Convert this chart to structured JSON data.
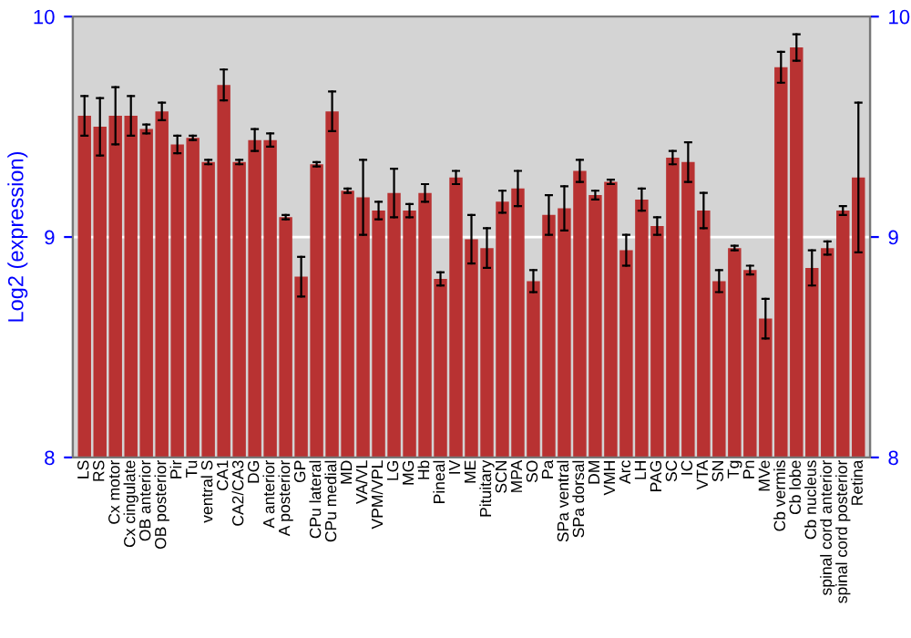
{
  "chart_data": {
    "type": "bar",
    "ylabel": "Log2 (expression)",
    "categories": [
      "LS",
      "RS",
      "Cx motor",
      "Cx cingulate",
      "OB anterior",
      "OB posterior",
      "Pir",
      "Tu",
      "ventral S",
      "CA1",
      "CA2/CA3",
      "DG",
      "A anterior",
      "A posterior",
      "GP",
      "CPu lateral",
      "CPu medial",
      "MD",
      "VA/VL",
      "VPM/VPL",
      "LG",
      "MG",
      "Hb",
      "Pineal",
      "IV",
      "ME",
      "Pituitary",
      "SCN",
      "MPA",
      "SO",
      "Pa",
      "SPa ventral",
      "SPa dorsal",
      "DM",
      "VMH",
      "Arc",
      "LH",
      "PAG",
      "SC",
      "IC",
      "VTA",
      "SN",
      "Tg",
      "Pn",
      "MVe",
      "Cb vermis",
      "Cb lobe",
      "Cb nucleus",
      "spinal cord anterior",
      "spinal cord posterior",
      "Retina"
    ],
    "values": [
      9.55,
      9.5,
      9.55,
      9.55,
      9.49,
      9.57,
      9.42,
      9.45,
      9.34,
      9.69,
      9.34,
      9.44,
      9.44,
      9.09,
      8.82,
      9.33,
      9.57,
      9.21,
      9.18,
      9.12,
      9.2,
      9.12,
      9.2,
      8.81,
      9.27,
      8.99,
      8.95,
      9.16,
      9.22,
      8.8,
      9.1,
      9.13,
      9.3,
      9.19,
      9.25,
      8.94,
      9.17,
      9.05,
      9.36,
      9.34,
      9.12,
      8.8,
      8.95,
      8.85,
      8.63,
      9.77,
      9.86,
      8.86,
      8.95,
      9.12,
      9.27
    ],
    "errors": [
      0.09,
      0.13,
      0.13,
      0.09,
      0.02,
      0.04,
      0.04,
      0.01,
      0.01,
      0.07,
      0.01,
      0.05,
      0.03,
      0.01,
      0.09,
      0.01,
      0.09,
      0.01,
      0.17,
      0.04,
      0.11,
      0.03,
      0.04,
      0.03,
      0.03,
      0.11,
      0.09,
      0.05,
      0.08,
      0.05,
      0.09,
      0.1,
      0.05,
      0.02,
      0.01,
      0.07,
      0.05,
      0.04,
      0.03,
      0.09,
      0.08,
      0.05,
      0.01,
      0.02,
      0.09,
      0.07,
      0.06,
      0.08,
      0.03,
      0.02,
      0.34
    ],
    "color": "#b83232",
    "ylim": [
      8,
      10
    ],
    "yticks": [
      8,
      9,
      10
    ],
    "y2lim": [
      8,
      10
    ],
    "y2ticks": [
      8,
      9,
      10
    ],
    "ref_lines": [
      {
        "axis": "y",
        "value": 9,
        "color": "#ffffff"
      }
    ],
    "legend": false
  }
}
